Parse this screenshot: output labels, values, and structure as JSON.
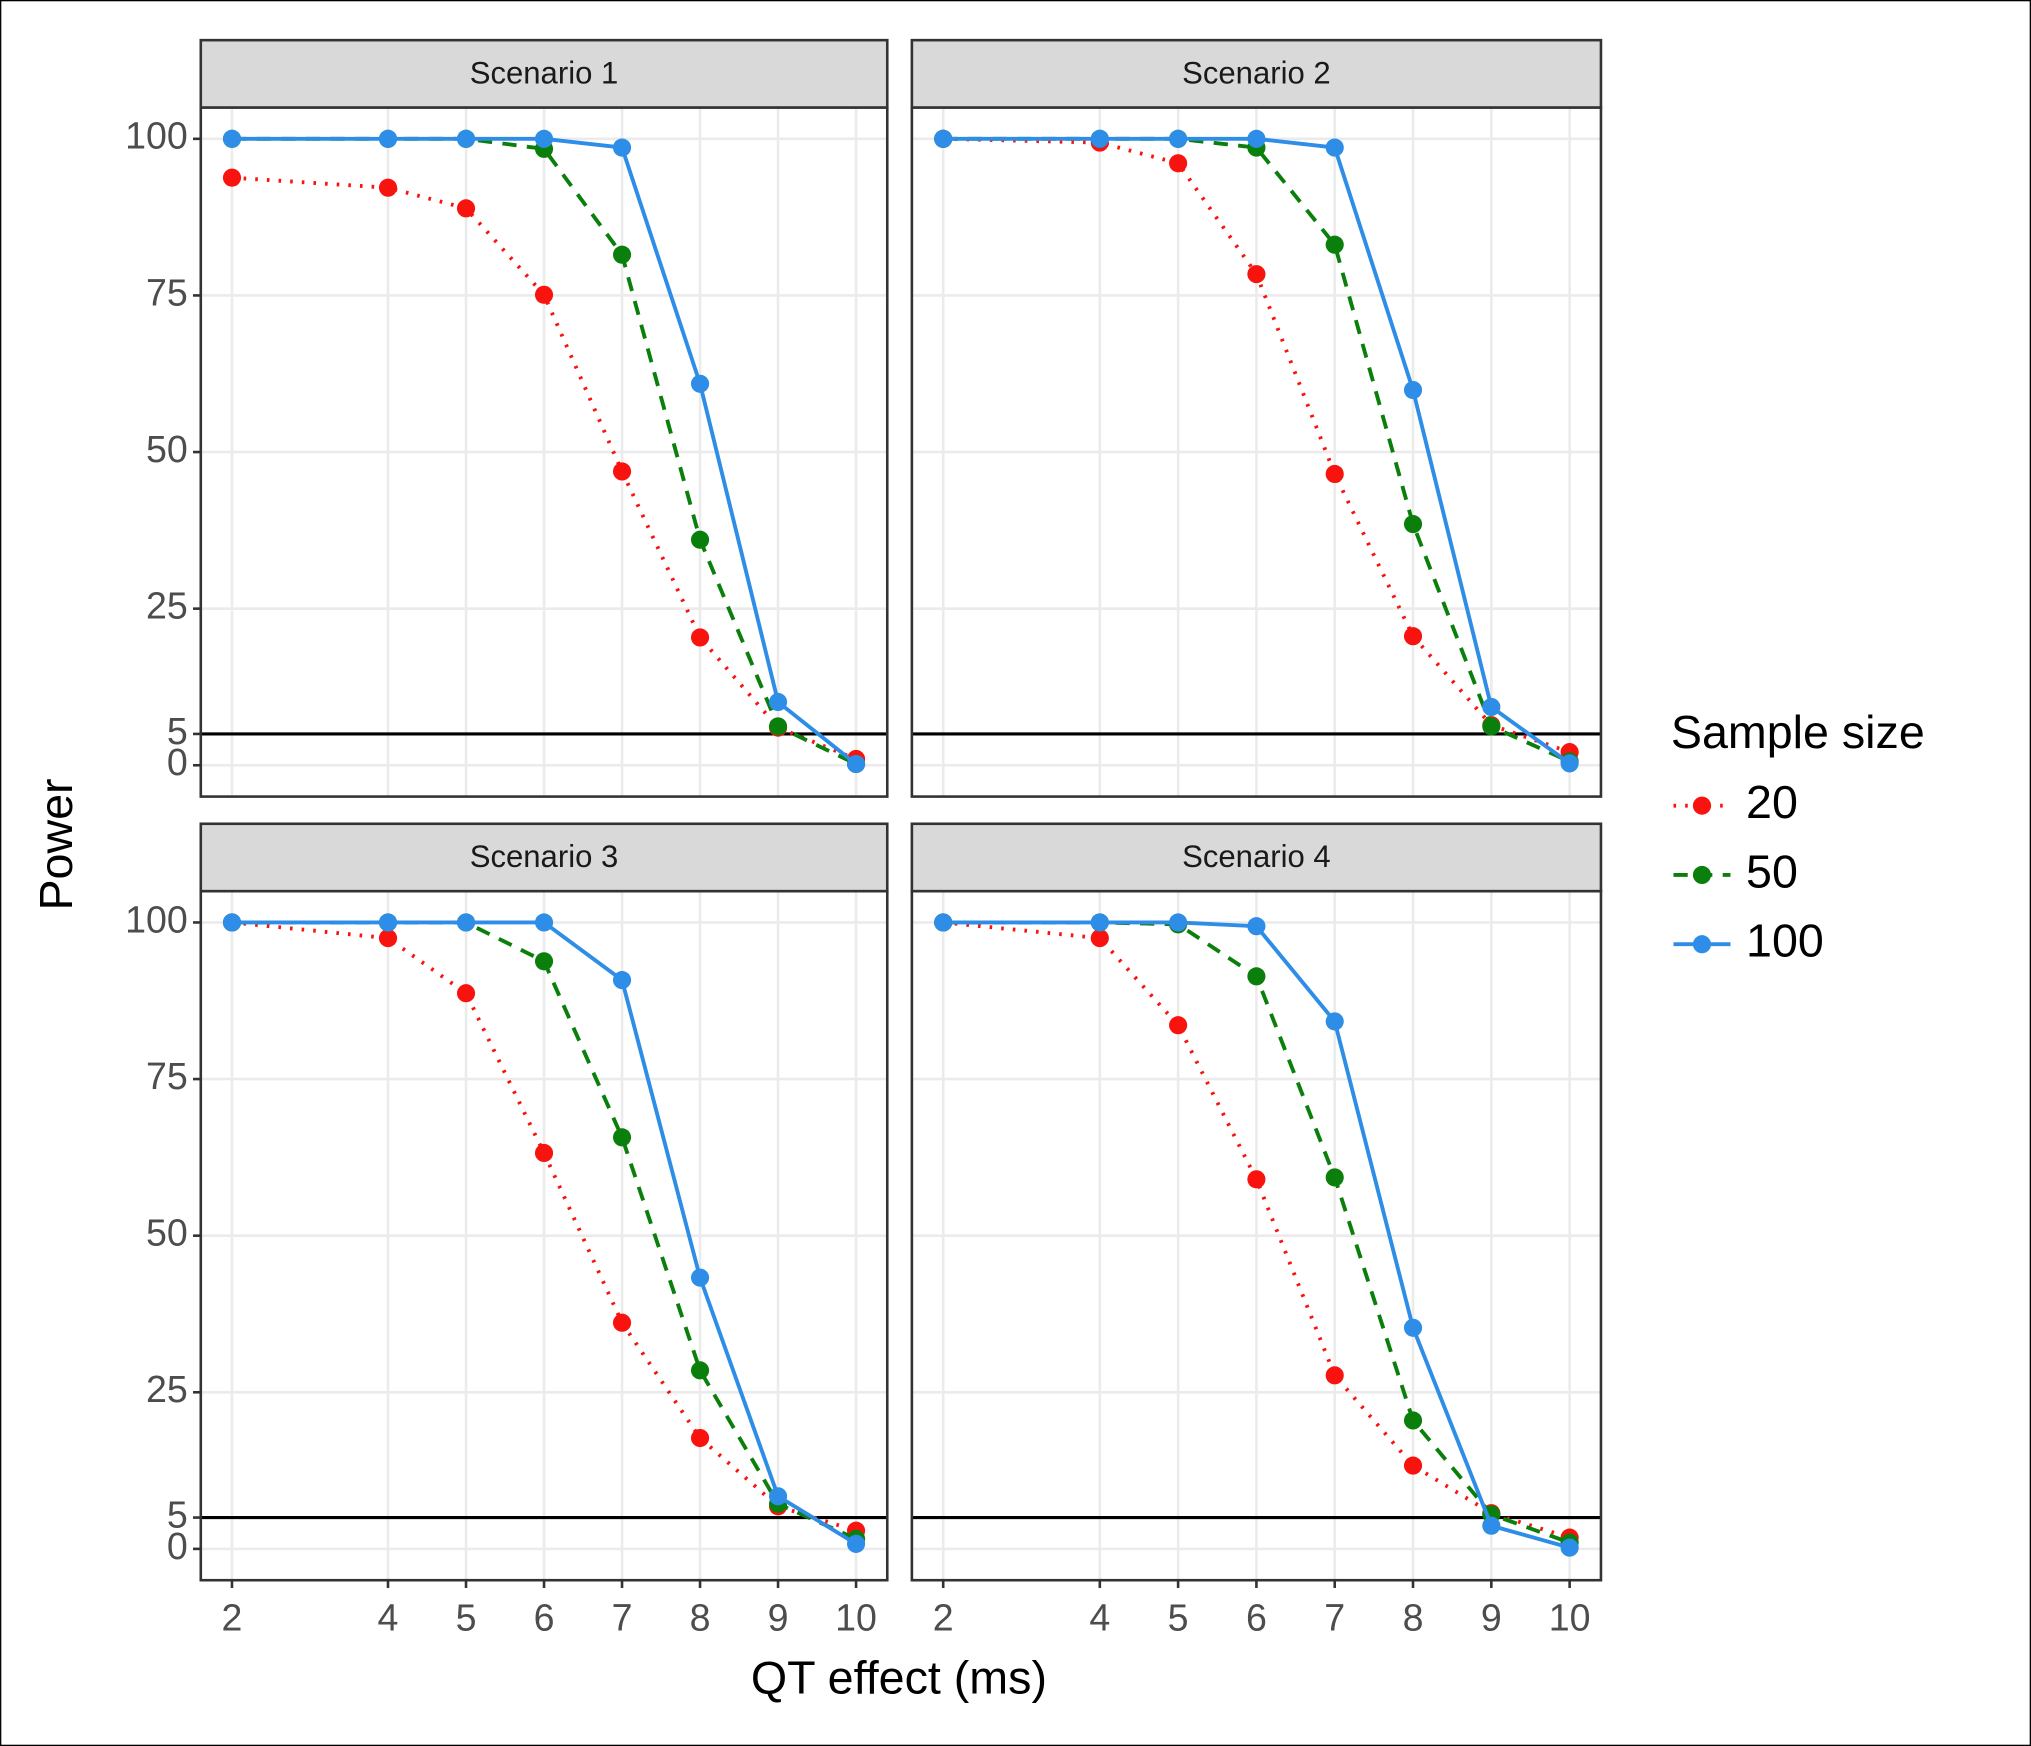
{
  "chart_data": {
    "type": "line",
    "x_label": "QT effect (ms)",
    "y_label": "Power",
    "legend_title": "Sample size",
    "x": [
      2,
      4,
      5,
      6,
      7,
      8,
      9,
      10
    ],
    "xlim": [
      1.6,
      10.4
    ],
    "xticks": [
      2,
      4,
      5,
      6,
      7,
      8,
      9,
      10
    ],
    "ylim": [
      -5,
      105
    ],
    "yticks": [
      0,
      5,
      25,
      50,
      75,
      100
    ],
    "hline": 5,
    "grid": true,
    "panels": [
      {
        "title": "Scenario 1",
        "series": [
          {
            "name": "20",
            "color": "#f8130f",
            "line_style": "dotted",
            "values": [
              93.8,
              92.2,
              88.9,
              75.1,
              46.9,
              20.4,
              6,
              1
            ]
          },
          {
            "name": "50",
            "color": "#0b7f0b",
            "line_style": "dashed",
            "values": [
              100,
              100,
              100,
              98.4,
              81.5,
              36,
              6.2,
              0.2
            ]
          },
          {
            "name": "100",
            "color": "#2e8de6",
            "line_style": "solid",
            "values": [
              100,
              100,
              100,
              100,
              98.6,
              60.9,
              10.1,
              0.2
            ]
          }
        ]
      },
      {
        "title": "Scenario 2",
        "series": [
          {
            "name": "20",
            "color": "#f8130f",
            "line_style": "dotted",
            "values": [
              100,
              99.4,
              96.1,
              78.4,
              46.5,
              20.6,
              6.4,
              2.1
            ]
          },
          {
            "name": "50",
            "color": "#0b7f0b",
            "line_style": "dashed",
            "values": [
              100,
              100,
              100,
              98.6,
              83.1,
              38.5,
              6.2,
              0.6
            ]
          },
          {
            "name": "100",
            "color": "#2e8de6",
            "line_style": "solid",
            "values": [
              100,
              100,
              100,
              100,
              98.6,
              59.9,
              9.3,
              0.3
            ]
          }
        ]
      },
      {
        "title": "Scenario 3",
        "series": [
          {
            "name": "20",
            "color": "#f8130f",
            "line_style": "dotted",
            "values": [
              100,
              97.5,
              88.7,
              63.2,
              36.1,
              17.7,
              6.8,
              2.9
            ]
          },
          {
            "name": "50",
            "color": "#0b7f0b",
            "line_style": "dashed",
            "values": [
              100,
              100,
              100,
              93.8,
              65.7,
              28.5,
              7.2,
              1.6
            ]
          },
          {
            "name": "100",
            "color": "#2e8de6",
            "line_style": "solid",
            "values": [
              100,
              100,
              100,
              100,
              90.8,
              43.3,
              8.4,
              0.8
            ]
          }
        ]
      },
      {
        "title": "Scenario 4",
        "series": [
          {
            "name": "20",
            "color": "#f8130f",
            "line_style": "dotted",
            "values": [
              100,
              97.5,
              83.6,
              59,
              27.7,
              13.3,
              5.7,
              1.8
            ]
          },
          {
            "name": "50",
            "color": "#0b7f0b",
            "line_style": "dashed",
            "values": [
              100,
              100,
              99.7,
              91.4,
              59.3,
              20.5,
              5.5,
              1
            ]
          },
          {
            "name": "100",
            "color": "#2e8de6",
            "line_style": "solid",
            "values": [
              100,
              100,
              100,
              99.4,
              84.2,
              35.3,
              3.7,
              0.2
            ]
          }
        ]
      }
    ]
  }
}
